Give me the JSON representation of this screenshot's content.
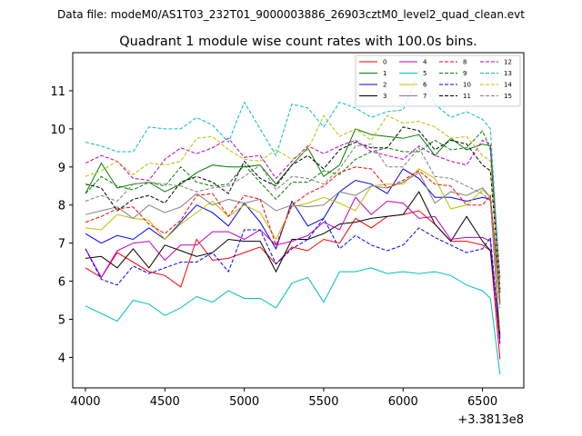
{
  "chart_data": {
    "type": "line",
    "header": "Data file: modeM0/AS1T03_232T01_9000003886_26903cztM0_level2_quad_clean.evt",
    "title": "Quadrant 1 module wise count rates with 100.0s bins.",
    "x_offset_label": "+3.3813e8",
    "xlim": [
      3920,
      6760
    ],
    "ylim": [
      3.2,
      12.0
    ],
    "x_ticks": [
      4000,
      4500,
      5000,
      5500,
      6000,
      6500
    ],
    "y_ticks": [
      4,
      5,
      6,
      7,
      8,
      9,
      10,
      11
    ],
    "x": [
      4000,
      4100,
      4200,
      4300,
      4400,
      4500,
      4600,
      4700,
      4800,
      4900,
      5000,
      5100,
      5200,
      5300,
      5400,
      5500,
      5600,
      5700,
      5800,
      5900,
      6000,
      6100,
      6200,
      6300,
      6400,
      6500,
      6550,
      6610
    ],
    "series": [
      {
        "name": "0",
        "color": "#ff0000",
        "dash": false,
        "values": [
          6.35,
          6.1,
          6.75,
          6.5,
          6.25,
          6.15,
          5.85,
          7.1,
          6.55,
          6.6,
          6.75,
          6.9,
          6.45,
          6.9,
          6.8,
          7.1,
          7.0,
          7.65,
          7.4,
          7.7,
          7.75,
          7.85,
          7.5,
          7.05,
          7.05,
          6.95,
          6.8,
          3.95
        ]
      },
      {
        "name": "1",
        "color": "#008000",
        "dash": false,
        "values": [
          8.3,
          9.1,
          8.45,
          8.55,
          8.6,
          8.35,
          8.55,
          8.85,
          9.05,
          9.0,
          9.0,
          9.05,
          8.55,
          9.05,
          9.5,
          8.75,
          9.05,
          10.0,
          9.85,
          9.8,
          9.75,
          9.85,
          9.3,
          9.75,
          9.45,
          9.6,
          9.55,
          5.4
        ]
      },
      {
        "name": "2",
        "color": "#0000ff",
        "dash": false,
        "values": [
          7.25,
          7.0,
          7.2,
          7.1,
          7.4,
          7.1,
          7.55,
          8.0,
          7.8,
          7.45,
          8.05,
          7.55,
          6.85,
          8.1,
          7.45,
          7.65,
          8.35,
          8.65,
          8.55,
          8.3,
          8.95,
          8.7,
          8.2,
          8.2,
          8.1,
          8.2,
          8.15,
          4.5
        ]
      },
      {
        "name": "3",
        "color": "#000000",
        "dash": false,
        "values": [
          6.6,
          6.65,
          6.35,
          6.85,
          6.35,
          6.95,
          6.8,
          6.65,
          6.75,
          7.1,
          7.05,
          7.05,
          6.25,
          7.1,
          7.1,
          7.25,
          7.5,
          7.55,
          7.65,
          7.7,
          7.75,
          8.35,
          7.5,
          7.05,
          7.7,
          7.05,
          6.8,
          4.6
        ]
      },
      {
        "name": "4",
        "color": "#bf00bf",
        "dash": false,
        "values": [
          6.85,
          6.1,
          6.8,
          7.0,
          7.05,
          6.55,
          6.95,
          6.95,
          7.3,
          7.3,
          7.1,
          7.35,
          6.95,
          7.05,
          7.2,
          7.55,
          7.35,
          8.2,
          7.75,
          8.1,
          8.05,
          7.65,
          7.7,
          7.1,
          7.15,
          7.15,
          7.05,
          4.35
        ]
      },
      {
        "name": "5",
        "color": "#00bfbf",
        "dash": false,
        "values": [
          5.35,
          5.15,
          4.95,
          5.5,
          5.4,
          5.1,
          5.3,
          5.6,
          5.45,
          5.75,
          5.55,
          5.55,
          5.3,
          5.95,
          6.1,
          5.45,
          6.25,
          6.25,
          6.35,
          6.2,
          6.25,
          6.2,
          6.25,
          6.15,
          5.9,
          5.75,
          5.55,
          3.55
        ]
      },
      {
        "name": "6",
        "color": "#bfbf00",
        "dash": false,
        "values": [
          7.4,
          7.35,
          7.75,
          7.65,
          7.6,
          7.1,
          7.5,
          7.8,
          8.1,
          7.7,
          8.0,
          7.8,
          7.1,
          7.95,
          8.05,
          8.2,
          8.05,
          7.85,
          8.5,
          8.55,
          8.55,
          8.95,
          8.7,
          7.9,
          8.0,
          8.4,
          8.2,
          4.7
        ]
      },
      {
        "name": "7",
        "color": "#808080",
        "dash": false,
        "values": [
          7.75,
          7.85,
          7.95,
          7.65,
          8.0,
          7.8,
          7.95,
          8.3,
          8.0,
          8.15,
          8.05,
          8.15,
          7.85,
          8.0,
          7.95,
          8.0,
          8.35,
          8.25,
          8.5,
          8.45,
          8.6,
          8.85,
          8.05,
          8.35,
          8.25,
          8.45,
          8.2,
          5.7
        ]
      },
      {
        "name": "8",
        "color": "#ff0000",
        "dash": true,
        "values": [
          7.55,
          7.7,
          7.9,
          7.95,
          7.5,
          7.25,
          7.6,
          8.25,
          8.3,
          7.7,
          8.25,
          8.15,
          6.95,
          8.0,
          8.3,
          8.5,
          8.85,
          9.0,
          8.95,
          8.45,
          8.65,
          8.9,
          8.55,
          8.5,
          8.0,
          8.0,
          8.25,
          5.45
        ]
      },
      {
        "name": "9",
        "color": "#008000",
        "dash": true,
        "values": [
          8.3,
          8.75,
          8.5,
          8.4,
          8.6,
          8.5,
          9.0,
          8.6,
          8.5,
          8.55,
          9.05,
          8.6,
          8.15,
          8.6,
          8.6,
          8.9,
          8.8,
          9.2,
          9.4,
          9.5,
          9.4,
          9.4,
          9.7,
          9.45,
          9.5,
          9.95,
          9.45,
          5.7
        ]
      },
      {
        "name": "10",
        "color": "#0000ff",
        "dash": true,
        "values": [
          6.85,
          6.05,
          5.9,
          6.4,
          6.2,
          6.35,
          6.5,
          6.5,
          6.75,
          6.25,
          7.35,
          7.35,
          6.45,
          6.85,
          7.1,
          7.65,
          6.85,
          7.2,
          6.95,
          6.8,
          6.95,
          7.4,
          7.15,
          6.95,
          6.75,
          6.85,
          7.15,
          4.4
        ]
      },
      {
        "name": "11",
        "color": "#000000",
        "dash": true,
        "values": [
          8.55,
          8.45,
          7.85,
          8.15,
          8.25,
          8.05,
          8.6,
          8.75,
          8.6,
          8.3,
          9.15,
          8.7,
          8.5,
          9.05,
          9.3,
          8.95,
          9.45,
          9.65,
          9.5,
          9.5,
          10.05,
          9.95,
          9.45,
          9.7,
          9.6,
          9.05,
          8.9,
          5.8
        ]
      },
      {
        "name": "12",
        "color": "#bf00bf",
        "dash": true,
        "values": [
          9.1,
          9.3,
          9.15,
          8.7,
          8.65,
          9.2,
          9.5,
          9.35,
          9.5,
          9.75,
          9.25,
          9.3,
          8.7,
          9.15,
          9.55,
          9.35,
          9.55,
          9.7,
          9.4,
          9.3,
          9.2,
          9.55,
          9.3,
          9.15,
          9.05,
          9.7,
          9.6,
          6.1
        ]
      },
      {
        "name": "13",
        "color": "#00bfbf",
        "dash": true,
        "values": [
          9.65,
          9.55,
          9.4,
          9.4,
          10.05,
          10.0,
          10.0,
          10.3,
          10.1,
          9.65,
          10.7,
          10.0,
          9.3,
          10.65,
          10.55,
          10.05,
          10.7,
          10.55,
          10.3,
          10.45,
          10.5,
          11.5,
          10.65,
          10.3,
          10.45,
          10.25,
          10.0,
          5.9
        ]
      },
      {
        "name": "14",
        "color": "#bfbf00",
        "dash": true,
        "values": [
          8.75,
          8.9,
          9.15,
          8.8,
          9.1,
          9.05,
          9.15,
          9.75,
          9.8,
          9.45,
          9.2,
          9.15,
          9.45,
          9.2,
          9.45,
          10.35,
          9.8,
          10.0,
          9.7,
          10.35,
          10.15,
          10.2,
          10.05,
          9.75,
          9.8,
          9.3,
          9.15,
          5.75
        ]
      },
      {
        "name": "15",
        "color": "#808080",
        "dash": true,
        "values": [
          8.1,
          8.25,
          8.1,
          8.55,
          8.6,
          8.55,
          8.5,
          8.35,
          8.45,
          8.5,
          8.75,
          9.05,
          8.4,
          8.75,
          8.7,
          8.55,
          8.95,
          9.55,
          9.6,
          9.0,
          9.0,
          9.5,
          8.75,
          8.7,
          8.5,
          8.3,
          8.1,
          5.3
        ]
      }
    ]
  }
}
